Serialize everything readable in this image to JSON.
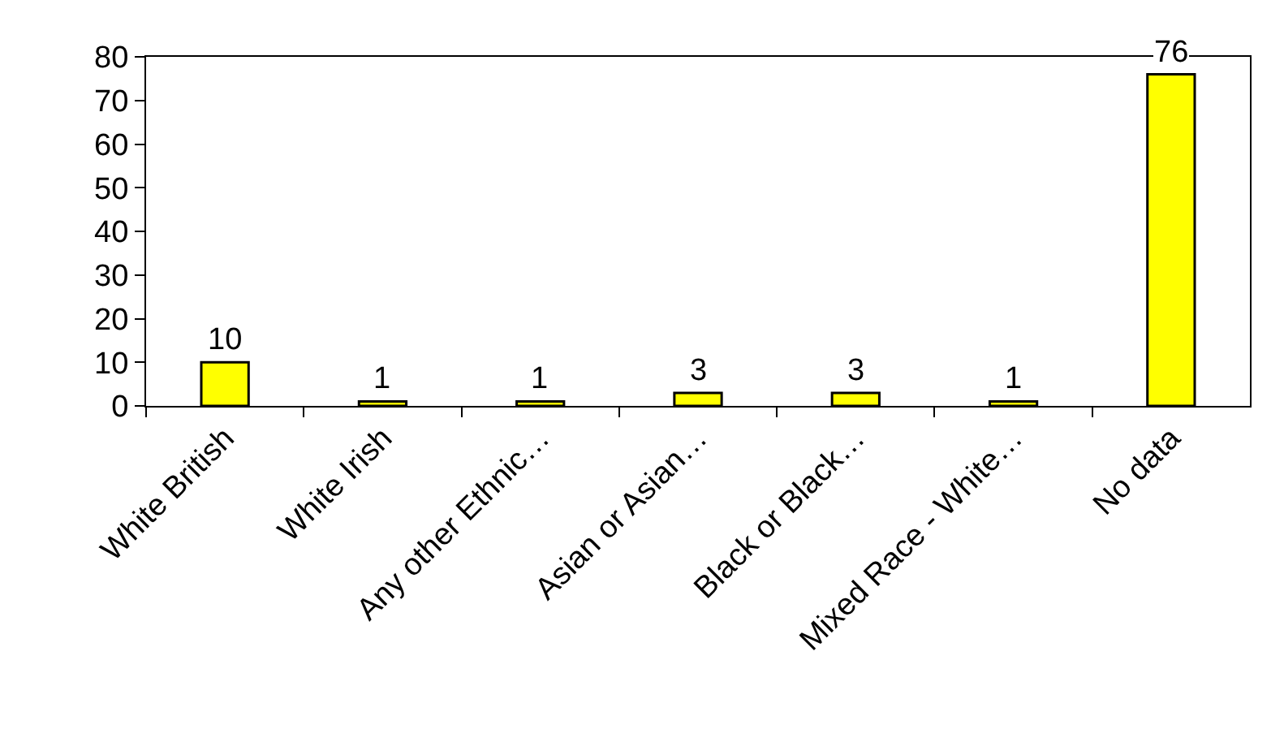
{
  "chart_data": {
    "type": "bar",
    "categories": [
      "White British",
      "White Irish",
      "Any other Ethnic…",
      "Asian or Asian…",
      "Black or Black…",
      "Mixed Race - White…",
      "No data"
    ],
    "values": [
      10,
      1,
      1,
      3,
      3,
      1,
      76
    ],
    "color": "#ffff00",
    "ylim": [
      0,
      80
    ],
    "yticks": [
      0,
      10,
      20,
      30,
      40,
      50,
      60,
      70,
      80
    ],
    "grid": false,
    "data_labels": true,
    "legend": false
  }
}
